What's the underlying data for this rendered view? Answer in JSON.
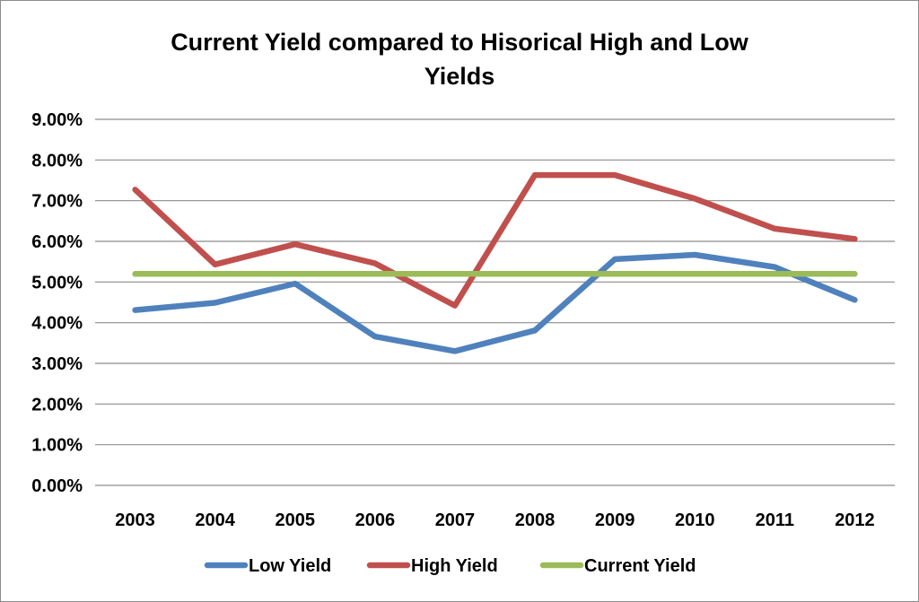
{
  "chart_data": {
    "type": "line",
    "title_lines": [
      "Current Yield compared to Hisorical High and Low",
      "Yields"
    ],
    "xlabel": "",
    "ylabel": "",
    "categories": [
      "2003",
      "2004",
      "2005",
      "2006",
      "2007",
      "2008",
      "2009",
      "2010",
      "2011",
      "2012"
    ],
    "ylim": [
      0,
      9
    ],
    "yticks": [
      0,
      1,
      2,
      3,
      4,
      5,
      6,
      7,
      8,
      9
    ],
    "ytick_labels": [
      "0.00%",
      "1.00%",
      "2.00%",
      "3.00%",
      "4.00%",
      "5.00%",
      "6.00%",
      "7.00%",
      "8.00%",
      "9.00%"
    ],
    "y_unit": "%",
    "grid": true,
    "legend_position": "bottom",
    "series": [
      {
        "name": "Low Yield",
        "color": "#4f81bd",
        "values": [
          4.31,
          4.49,
          4.96,
          3.66,
          3.3,
          3.81,
          5.56,
          5.67,
          5.37,
          4.56
        ]
      },
      {
        "name": "High Yield",
        "color": "#c0504d",
        "values": [
          7.27,
          5.43,
          5.93,
          5.46,
          4.42,
          7.63,
          7.63,
          7.05,
          6.31,
          6.06
        ]
      },
      {
        "name": "Current Yield",
        "color": "#9bbb59",
        "values": [
          5.2,
          5.2,
          5.2,
          5.2,
          5.2,
          5.2,
          5.2,
          5.2,
          5.2,
          5.2
        ]
      }
    ]
  }
}
